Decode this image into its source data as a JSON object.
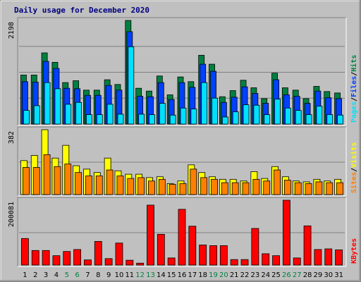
{
  "title": "Daily usage for December 2020",
  "colors": {
    "hits": "#008040",
    "files": "#0040ff",
    "pages": "#00e0ff",
    "visits": "#ffff00",
    "sites": "#ff8000",
    "kbytes": "#ff0000",
    "weekend_day": "#008040",
    "weekday": "#000000",
    "background": "#c0c0c0"
  },
  "chart_data": [
    {
      "type": "bar",
      "name": "hits-files-pages",
      "legend": [
        "Pages",
        "Files",
        "Hits"
      ],
      "legend_sep": "/",
      "max_label": "2198",
      "ylim": [
        0,
        2198
      ],
      "categories": [
        "1",
        "2",
        "3",
        "4",
        "5",
        "6",
        "7",
        "8",
        "9",
        "10",
        "11",
        "12",
        "13",
        "14",
        "15",
        "16",
        "17",
        "18",
        "19",
        "20",
        "21",
        "22",
        "23",
        "24",
        "25",
        "26",
        "27",
        "28",
        "29",
        "30",
        "31"
      ],
      "weekend": [
        5,
        6,
        12,
        13,
        19,
        20,
        26,
        27
      ],
      "series": [
        {
          "name": "Hits",
          "values": [
            1040,
            1040,
            1510,
            1310,
            880,
            920,
            720,
            720,
            940,
            840,
            2198,
            760,
            700,
            1020,
            620,
            1000,
            900,
            1460,
            1270,
            580,
            710,
            930,
            770,
            540,
            1080,
            770,
            720,
            540,
            800,
            690,
            660
          ]
        },
        {
          "name": "Files",
          "values": [
            900,
            890,
            1330,
            1180,
            760,
            750,
            610,
            610,
            820,
            720,
            1960,
            590,
            580,
            880,
            520,
            880,
            780,
            1270,
            1120,
            460,
            570,
            790,
            650,
            440,
            940,
            620,
            590,
            440,
            700,
            560,
            540
          ]
        },
        {
          "name": "Pages",
          "values": [
            290,
            390,
            880,
            750,
            420,
            460,
            200,
            200,
            420,
            210,
            1640,
            210,
            200,
            440,
            190,
            340,
            320,
            880,
            550,
            150,
            260,
            410,
            400,
            200,
            530,
            340,
            290,
            200,
            380,
            200,
            190
          ]
        }
      ]
    },
    {
      "type": "bar",
      "name": "visits-sites",
      "legend": [
        "Sites",
        "Visits"
      ],
      "legend_sep": "/",
      "max_label": "382",
      "ylim": [
        0,
        382
      ],
      "categories": [
        "1",
        "2",
        "3",
        "4",
        "5",
        "6",
        "7",
        "8",
        "9",
        "10",
        "11",
        "12",
        "13",
        "14",
        "15",
        "16",
        "17",
        "18",
        "19",
        "20",
        "21",
        "22",
        "23",
        "24",
        "25",
        "26",
        "27",
        "28",
        "29",
        "30",
        "31"
      ],
      "weekend": [
        5,
        6,
        12,
        13,
        19,
        20,
        26,
        27
      ],
      "series": [
        {
          "name": "Visits",
          "values": [
            200,
            230,
            382,
            215,
            290,
            170,
            150,
            130,
            215,
            140,
            120,
            120,
            100,
            105,
            65,
            80,
            175,
            130,
            105,
            90,
            90,
            80,
            135,
            95,
            165,
            105,
            80,
            75,
            90,
            80,
            90
          ]
        },
        {
          "name": "Sites",
          "values": [
            160,
            160,
            235,
            165,
            180,
            130,
            110,
            110,
            145,
            110,
            95,
            100,
            80,
            90,
            60,
            65,
            150,
            100,
            90,
            70,
            70,
            70,
            90,
            80,
            145,
            85,
            70,
            65,
            75,
            70,
            70
          ]
        }
      ]
    },
    {
      "type": "bar",
      "name": "kbytes",
      "legend": [
        "KBytes"
      ],
      "legend_sep": "",
      "max_label": "200081",
      "ylim": [
        0,
        200081
      ],
      "categories": [
        "1",
        "2",
        "3",
        "4",
        "5",
        "6",
        "7",
        "8",
        "9",
        "10",
        "11",
        "12",
        "13",
        "14",
        "15",
        "16",
        "17",
        "18",
        "19",
        "20",
        "21",
        "22",
        "23",
        "24",
        "25",
        "26",
        "27",
        "28",
        "29",
        "30",
        "31"
      ],
      "weekend": [
        5,
        6,
        12,
        13,
        19,
        20,
        26,
        27
      ],
      "series": [
        {
          "name": "KBytes",
          "values": [
            82000,
            45000,
            45000,
            29000,
            42000,
            48000,
            16000,
            73000,
            20000,
            68000,
            15000,
            6000,
            185000,
            95000,
            22000,
            172000,
            120000,
            62000,
            60000,
            60000,
            17000,
            17000,
            113000,
            35000,
            29000,
            200081,
            22000,
            121000,
            48000,
            50000,
            47000
          ]
        }
      ]
    }
  ]
}
